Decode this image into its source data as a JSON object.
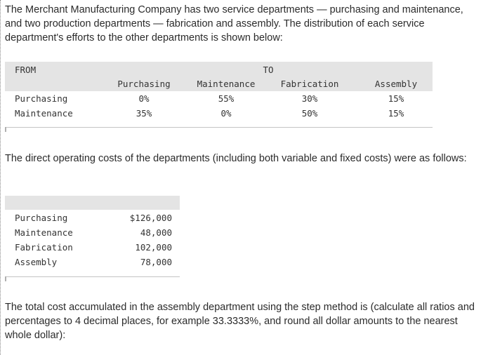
{
  "intro": "The Merchant Manufacturing Company has two service departments — purchasing and maintenance, and two production departments — fabrication and assembly. The distribution of each service department's efforts to the other departments is shown below:",
  "distribution_table": {
    "from_label": "FROM",
    "to_label": "TO",
    "columns": [
      "Purchasing",
      "Maintenance",
      "Fabrication",
      "Assembly"
    ],
    "rows": [
      {
        "label": "Purchasing",
        "values": [
          "0%",
          "55%",
          "30%",
          "15%"
        ]
      },
      {
        "label": "Maintenance",
        "values": [
          "35%",
          "0%",
          "50%",
          "15%"
        ]
      }
    ]
  },
  "costs_intro": "The direct operating costs of the departments (including both variable and fixed costs) were as follows:",
  "costs_table": {
    "rows": [
      {
        "label": "Purchasing",
        "value": "$126,000"
      },
      {
        "label": "Maintenance",
        "value": "48,000"
      },
      {
        "label": "Fabrication",
        "value": "102,000"
      },
      {
        "label": "Assembly",
        "value": "78,000"
      }
    ]
  },
  "question": "The total cost accumulated in the assembly department using the step method is (calculate all ratios and percentages to 4 decimal places, for example 33.3333%, and round all dollar amounts to the nearest whole dollar):"
}
